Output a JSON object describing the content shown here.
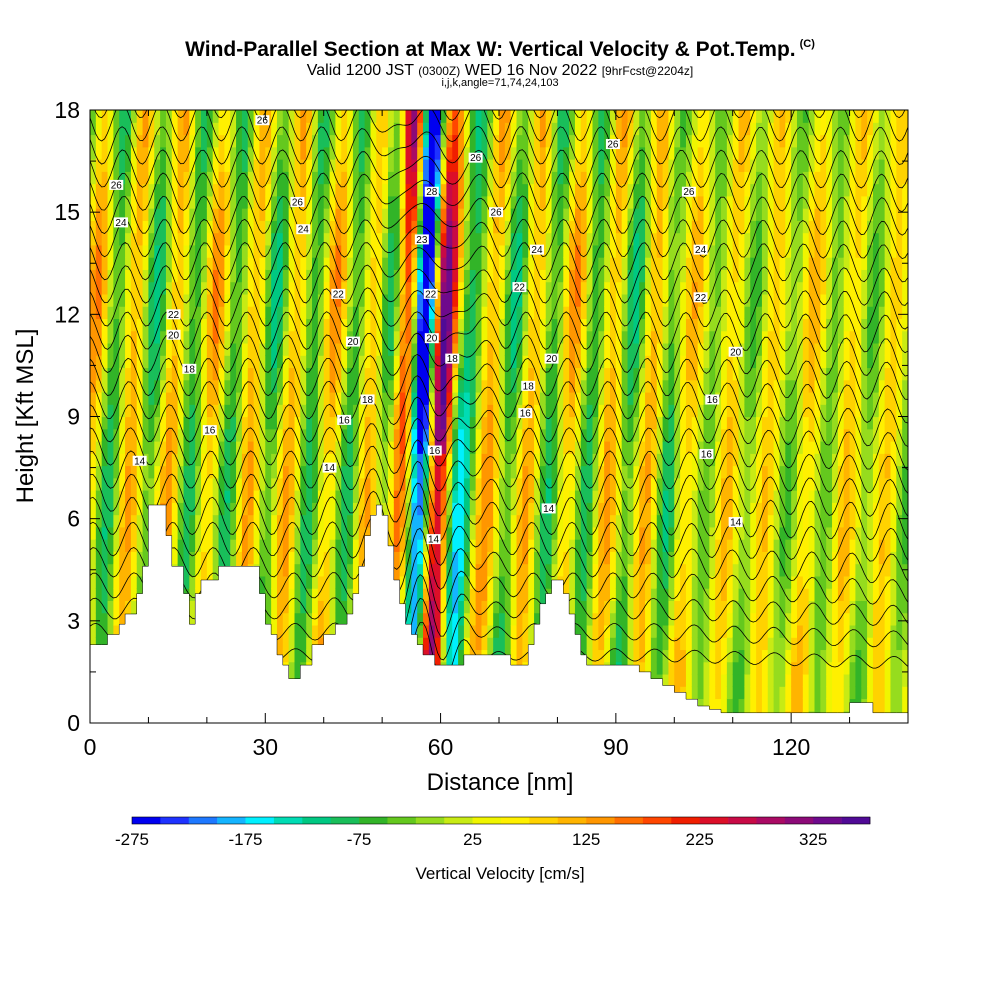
{
  "header": {
    "title": "Wind-Parallel Section at Max W: Vertical Velocity & Pot.Temp.",
    "copyright_mark": "(C)",
    "valid_prefix": "Valid 1200 JST",
    "valid_utc": "(0300Z)",
    "valid_date": "WED 16 Nov 2022",
    "forecast_info": "[9hrFcst@2204z]",
    "grid_info": "i,j,k,angle=71,74,24,103"
  },
  "chart_data": {
    "type": "heatmap",
    "xlabel": "Distance [nm]",
    "ylabel": "Height [Kft MSL]",
    "xlim": [
      0,
      140
    ],
    "ylim": [
      0,
      18
    ],
    "x_ticks": [
      0,
      30,
      60,
      90,
      120
    ],
    "y_ticks": [
      0,
      3,
      6,
      9,
      12,
      15,
      18
    ],
    "colorbar": {
      "label": "Vertical Velocity [cm/s]",
      "tick_labels": [
        "-275",
        "-175",
        "-75",
        "25",
        "125",
        "225",
        "325"
      ],
      "tick_values": [
        -275,
        -175,
        -75,
        25,
        125,
        225,
        325
      ],
      "min": -275,
      "max": 375,
      "step": 25,
      "colors": [
        "#0000f0",
        "#1e32ff",
        "#1e78ff",
        "#14b4ff",
        "#00f0ff",
        "#00dcb4",
        "#00c882",
        "#19be5a",
        "#32b428",
        "#64c81e",
        "#96dc1e",
        "#c8eb14",
        "#f0f500",
        "#fff000",
        "#ffd200",
        "#ffb400",
        "#ff9600",
        "#ff6e00",
        "#ff4600",
        "#f01e00",
        "#dc0f28",
        "#c80a46",
        "#aa0a64",
        "#8c0a78",
        "#6e0a8c",
        "#500a96"
      ]
    },
    "terrain": {
      "x": [
        0,
        2,
        3,
        5,
        6,
        8,
        9,
        10,
        11,
        13,
        14,
        16,
        17,
        18,
        19,
        20,
        22,
        24,
        26,
        28,
        29,
        30,
        31,
        32,
        33,
        34,
        35,
        36,
        38,
        40,
        42,
        44,
        45,
        46,
        47,
        48,
        49,
        50,
        51,
        52,
        53,
        54,
        55,
        56,
        57,
        58,
        59,
        60,
        61,
        62,
        64,
        66,
        68,
        70,
        72,
        74,
        75,
        76,
        77,
        78,
        79,
        80,
        81,
        82,
        83,
        84,
        85,
        86,
        88,
        90,
        92,
        94,
        96,
        98,
        100,
        102,
        104,
        106,
        108,
        110,
        114,
        118,
        122,
        126,
        128,
        130,
        132,
        134,
        136,
        138,
        140
      ],
      "height": [
        2.3,
        2.3,
        2.6,
        2.9,
        3.2,
        3.8,
        4.6,
        6.4,
        6.4,
        5.5,
        4.6,
        3.8,
        2.9,
        3.8,
        4.2,
        4.2,
        4.6,
        4.6,
        4.6,
        4.6,
        3.8,
        2.9,
        2.6,
        2.0,
        1.7,
        1.3,
        1.3,
        1.7,
        2.3,
        2.6,
        2.9,
        3.2,
        3.8,
        4.6,
        5.5,
        6.1,
        6.4,
        6.1,
        5.2,
        4.2,
        3.5,
        2.9,
        2.6,
        2.3,
        2.0,
        2.0,
        1.7,
        1.7,
        1.7,
        1.7,
        2.0,
        2.0,
        2.0,
        2.0,
        1.7,
        1.7,
        2.3,
        2.9,
        3.5,
        3.8,
        4.2,
        4.2,
        3.8,
        3.2,
        2.6,
        2.0,
        1.7,
        1.7,
        1.7,
        1.7,
        1.7,
        1.5,
        1.3,
        1.1,
        0.9,
        0.7,
        0.5,
        0.4,
        0.3,
        0.3,
        0.3,
        0.3,
        0.3,
        0.3,
        0.3,
        0.6,
        0.6,
        0.3,
        0.3,
        0.3,
        0.3
      ]
    },
    "theta_contour_labels": [
      {
        "x": 4.5,
        "y": 15.8,
        "text": "26"
      },
      {
        "x": 5.3,
        "y": 14.7,
        "text": "24"
      },
      {
        "x": 14.3,
        "y": 12.0,
        "text": "22"
      },
      {
        "x": 14.3,
        "y": 11.4,
        "text": "20"
      },
      {
        "x": 17.0,
        "y": 10.4,
        "text": "18"
      },
      {
        "x": 20.5,
        "y": 8.6,
        "text": "16"
      },
      {
        "x": 8.5,
        "y": 7.7,
        "text": "14"
      },
      {
        "x": 29.5,
        "y": 17.7,
        "text": "26"
      },
      {
        "x": 35.5,
        "y": 15.3,
        "text": "26"
      },
      {
        "x": 36.5,
        "y": 14.5,
        "text": "24"
      },
      {
        "x": 42.5,
        "y": 12.6,
        "text": "22"
      },
      {
        "x": 45.0,
        "y": 11.2,
        "text": "20"
      },
      {
        "x": 43.5,
        "y": 8.9,
        "text": "16"
      },
      {
        "x": 41.0,
        "y": 7.5,
        "text": "14"
      },
      {
        "x": 47.5,
        "y": 9.5,
        "text": "18"
      },
      {
        "x": 58.5,
        "y": 15.6,
        "text": "28"
      },
      {
        "x": 56.8,
        "y": 14.2,
        "text": "23"
      },
      {
        "x": 58.3,
        "y": 12.6,
        "text": "22"
      },
      {
        "x": 58.5,
        "y": 11.3,
        "text": "20"
      },
      {
        "x": 62.0,
        "y": 10.7,
        "text": "18"
      },
      {
        "x": 59.0,
        "y": 8.0,
        "text": "16"
      },
      {
        "x": 58.8,
        "y": 5.4,
        "text": "14"
      },
      {
        "x": 66.0,
        "y": 16.6,
        "text": "26"
      },
      {
        "x": 69.5,
        "y": 15.0,
        "text": "26"
      },
      {
        "x": 76.5,
        "y": 13.9,
        "text": "24"
      },
      {
        "x": 73.5,
        "y": 12.8,
        "text": "22"
      },
      {
        "x": 79.0,
        "y": 10.7,
        "text": "20"
      },
      {
        "x": 75.0,
        "y": 9.9,
        "text": "18"
      },
      {
        "x": 74.5,
        "y": 9.1,
        "text": "16"
      },
      {
        "x": 78.5,
        "y": 6.3,
        "text": "14"
      },
      {
        "x": 89.5,
        "y": 17.0,
        "text": "26"
      },
      {
        "x": 102.5,
        "y": 15.6,
        "text": "26"
      },
      {
        "x": 104.5,
        "y": 13.9,
        "text": "24"
      },
      {
        "x": 104.5,
        "y": 12.5,
        "text": "22"
      },
      {
        "x": 110.5,
        "y": 10.9,
        "text": "20"
      },
      {
        "x": 106.5,
        "y": 9.5,
        "text": "16"
      },
      {
        "x": 105.5,
        "y": 7.9,
        "text": "16"
      },
      {
        "x": 110.5,
        "y": 5.9,
        "text": "14"
      }
    ]
  }
}
